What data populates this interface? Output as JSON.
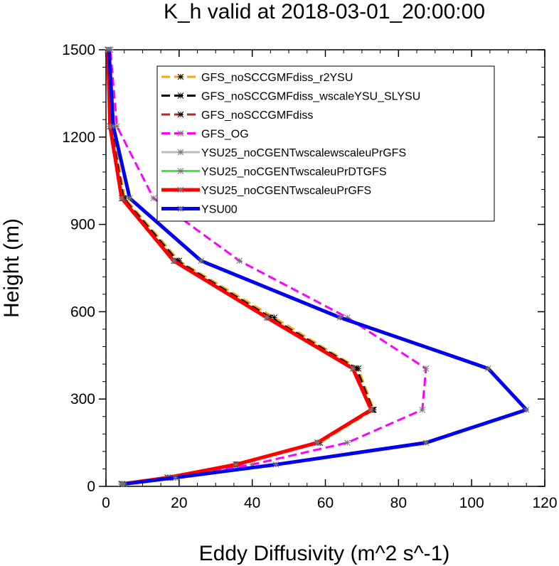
{
  "chart_data": {
    "type": "line",
    "title": "K_h valid at 2018-03-01_20:00:00",
    "xlabel": "Eddy Diffusivity (m^2 s^-1)",
    "ylabel": "Height (m)",
    "xlim": [
      0,
      120
    ],
    "ylim": [
      0,
      1500
    ],
    "xticks": [
      0,
      20,
      40,
      60,
      80,
      100,
      120
    ],
    "yticks": [
      0,
      300,
      600,
      900,
      1200,
      1500
    ],
    "xtick_labels": [
      "0",
      "20",
      "40",
      "60",
      "80",
      "100",
      "120"
    ],
    "ytick_labels": [
      "0",
      "300",
      "600",
      "900",
      "1200",
      "1500"
    ],
    "grid": false,
    "legend_position": "top-right",
    "heights": [
      8,
      30,
      75,
      150,
      263,
      405,
      580,
      775,
      990,
      1237,
      1500
    ],
    "series": [
      {
        "name": "GFS_noSCCGMFdiss_r2YSU",
        "color": "#ffa500",
        "dash": "dashed",
        "width": 3,
        "values": [
          4.5,
          17.5,
          36.5,
          58.5,
          73.2,
          69,
          46,
          20,
          5.2,
          1.6,
          0.8
        ]
      },
      {
        "name": "GFS_noSCCGMFdiss_wscaleYSU_SLYSU",
        "color": "#000000",
        "dash": "dashed",
        "width": 3,
        "values": [
          4.3,
          17,
          36,
          58,
          73,
          68.5,
          45,
          19.5,
          4.8,
          1.4,
          0.6
        ]
      },
      {
        "name": "GFS_noSCCGMFdiss",
        "color": "#a52a2a",
        "dash": "dashed",
        "width": 3,
        "values": [
          4.2,
          16.8,
          35.8,
          57.8,
          72.8,
          68,
          44.5,
          19,
          4.5,
          1.2,
          0.5
        ]
      },
      {
        "name": "GFS_OG",
        "color": "#ff00ff",
        "dash": "dashed",
        "width": 3,
        "values": [
          5,
          18.5,
          40,
          66,
          86.5,
          87.5,
          66,
          36.5,
          13,
          3,
          1.2
        ]
      },
      {
        "name": "YSU25_noCGENTwscalewscaleuPrGFS",
        "color": "#bbbbbb",
        "dash": "solid",
        "width": 3,
        "values": [
          4.2,
          16.8,
          35.5,
          57.8,
          72.5,
          67.5,
          44,
          18.5,
          4.3,
          1.1,
          0.5
        ]
      },
      {
        "name": "YSU25_noCGENTwscaleuPrDTGFS",
        "color": "#33ee33",
        "dash": "solid",
        "width": 3,
        "values": [
          4.2,
          16.8,
          35.6,
          57.9,
          72.6,
          67.6,
          44.1,
          18.6,
          4.4,
          1.2,
          0.5
        ]
      },
      {
        "name": "YSU25_noCGENTwscaleuPrGFS",
        "color": "#ff0000",
        "dash": "solid",
        "width": 5,
        "values": [
          4.2,
          16.8,
          35.5,
          57.8,
          72.5,
          67.5,
          44,
          18.5,
          4.3,
          1.1,
          0.5
        ]
      },
      {
        "name": "YSU00",
        "color": "#0000ee",
        "dash": "solid",
        "width": 5,
        "values": [
          5,
          19,
          46.5,
          87.5,
          115,
          104.5,
          64,
          26,
          6.5,
          2,
          0.8
        ]
      }
    ]
  }
}
